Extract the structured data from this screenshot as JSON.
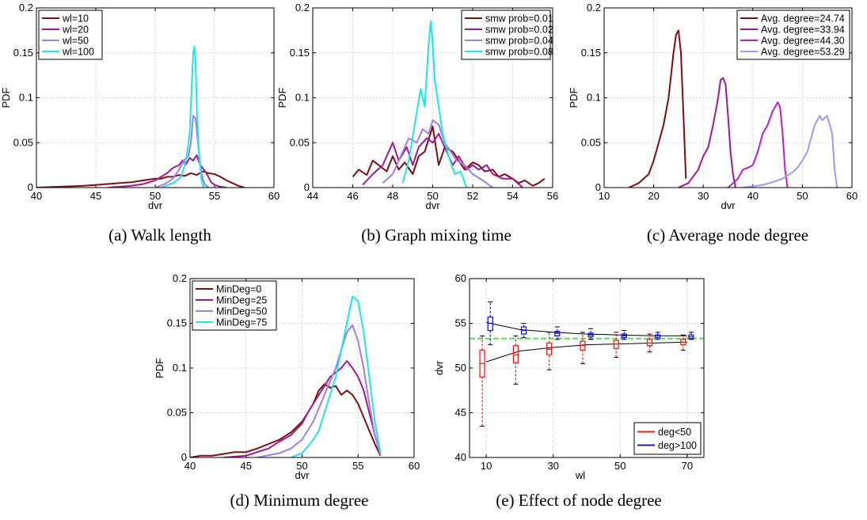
{
  "captions": {
    "a": "(a)  Walk length",
    "b": "(b)  Graph mixing time",
    "c": "(c)  Average node degree",
    "d": "(d)  Minimum degree",
    "e": "(e)  Effect of node degree"
  },
  "chart_data": [
    {
      "id": "a",
      "type": "line",
      "xlabel": "dvr",
      "ylabel": "PDF",
      "xlim": [
        40,
        60
      ],
      "ylim": [
        0,
        0.2
      ],
      "xticks": [
        40,
        45,
        50,
        55,
        60
      ],
      "yticks": [
        0,
        0.05,
        0.1,
        0.15,
        0.2
      ],
      "xtick_labels": [
        "40",
        "45",
        "50",
        "55",
        "60"
      ],
      "ytick_labels": [
        "0",
        "0.05",
        "0.1",
        "0.15",
        "0.2"
      ],
      "grid": true,
      "legend_position": "top-left",
      "series": [
        {
          "name": "wl=10",
          "color": "#7b0f12",
          "x": [
            40,
            42,
            44,
            45,
            46,
            47,
            48,
            49,
            50,
            50.5,
            51,
            51.5,
            52,
            52.5,
            53,
            53.5,
            54,
            54.5,
            55,
            55.5,
            56,
            56.5,
            57,
            57.5
          ],
          "y": [
            0,
            0.001,
            0.002,
            0.003,
            0.004,
            0.005,
            0.006,
            0.008,
            0.01,
            0.01,
            0.012,
            0.012,
            0.014,
            0.013,
            0.016,
            0.014,
            0.018,
            0.016,
            0.015,
            0.012,
            0.008,
            0.005,
            0.002,
            0
          ]
        },
        {
          "name": "wl=20",
          "color": "#a3188f",
          "x": [
            46,
            48,
            49,
            50,
            50.5,
            51,
            51.5,
            52,
            52.3,
            52.6,
            52.9,
            53.2,
            53.5,
            53.8,
            54.1,
            54.4,
            54.7,
            55,
            55.5,
            56
          ],
          "y": [
            0,
            0.002,
            0.004,
            0.008,
            0.012,
            0.016,
            0.022,
            0.025,
            0.03,
            0.026,
            0.033,
            0.03,
            0.036,
            0.025,
            0.02,
            0.014,
            0.006,
            0.003,
            0.001,
            0
          ]
        },
        {
          "name": "wl=50",
          "color": "#a07ee3",
          "x": [
            50,
            50.8,
            51.5,
            52,
            52.4,
            52.8,
            53,
            53.2,
            53.4,
            53.6,
            53.8,
            54,
            54.2,
            54.5
          ],
          "y": [
            0,
            0.004,
            0.01,
            0.02,
            0.03,
            0.035,
            0.05,
            0.08,
            0.077,
            0.05,
            0.025,
            0.01,
            0.003,
            0
          ]
        },
        {
          "name": "wl=100",
          "color": "#1ee6e6",
          "x": [
            50.5,
            51.5,
            52.2,
            52.6,
            52.9,
            53.1,
            53.2,
            53.3,
            53.4,
            53.5,
            53.7,
            53.9,
            54.1
          ],
          "y": [
            0,
            0.005,
            0.012,
            0.03,
            0.06,
            0.12,
            0.15,
            0.157,
            0.14,
            0.09,
            0.035,
            0.008,
            0
          ]
        }
      ]
    },
    {
      "id": "b",
      "type": "line",
      "xlabel": "dvr",
      "ylabel": "PDF",
      "xlim": [
        44,
        56
      ],
      "ylim": [
        0,
        0.2
      ],
      "xticks": [
        44,
        46,
        48,
        50,
        52,
        54,
        56
      ],
      "yticks": [
        0,
        0.05,
        0.1,
        0.15,
        0.2
      ],
      "xtick_labels": [
        "44",
        "46",
        "48",
        "50",
        "52",
        "54",
        "56"
      ],
      "ytick_labels": [
        "0",
        "0.05",
        "0.1",
        "0.15",
        "0.2"
      ],
      "grid": true,
      "legend_position": "top-right",
      "series": [
        {
          "name": "smw prob=0.01",
          "color": "#7b0f12",
          "x": [
            46,
            46.3,
            46.7,
            47,
            47.3,
            47.7,
            48,
            48.3,
            48.6,
            49,
            49.3,
            49.6,
            50,
            50.3,
            50.6,
            51,
            51.3,
            51.6,
            52,
            52.3,
            52.6,
            53,
            53.3,
            53.6,
            54,
            54.3,
            54.6,
            55,
            55.3,
            55.6
          ],
          "y": [
            0.012,
            0.02,
            0.014,
            0.03,
            0.025,
            0.018,
            0.035,
            0.02,
            0.028,
            0.015,
            0.035,
            0.04,
            0.068,
            0.025,
            0.045,
            0.04,
            0.03,
            0.02,
            0.028,
            0.025,
            0.018,
            0.02,
            0.012,
            0.015,
            0.01,
            0.005,
            0.008,
            0.002,
            0.005,
            0.01
          ]
        },
        {
          "name": "smw prob=0.02",
          "color": "#a3188f",
          "x": [
            46.5,
            47,
            47.5,
            48,
            48.3,
            48.7,
            49,
            49.3,
            49.7,
            50,
            50.3,
            50.7,
            51,
            51.3,
            51.7,
            52,
            52.3,
            52.7,
            53,
            53.5,
            54,
            54.5
          ],
          "y": [
            0.003,
            0.015,
            0.025,
            0.05,
            0.03,
            0.045,
            0.025,
            0.045,
            0.055,
            0.05,
            0.06,
            0.04,
            0.025,
            0.035,
            0.02,
            0.025,
            0.02,
            0.025,
            0.015,
            0.01,
            0.01,
            0
          ]
        },
        {
          "name": "smw prob=0.04",
          "color": "#a07ee3",
          "x": [
            47.5,
            48,
            48.4,
            48.8,
            49.2,
            49.5,
            49.8,
            50,
            50.3,
            50.6,
            50.9,
            51.2,
            51.6,
            52,
            52.5,
            53
          ],
          "y": [
            0.005,
            0.015,
            0.035,
            0.055,
            0.05,
            0.065,
            0.06,
            0.075,
            0.07,
            0.05,
            0.04,
            0.03,
            0.025,
            0.015,
            0.008,
            0
          ]
        },
        {
          "name": "smw prob=0.08",
          "color": "#1ee6e6",
          "x": [
            48.5,
            48.8,
            49.1,
            49.4,
            49.6,
            49.8,
            49.9,
            50,
            50.1,
            50.3,
            50.5,
            50.8,
            51.1,
            51.4,
            51.7
          ],
          "y": [
            0.005,
            0.03,
            0.07,
            0.11,
            0.09,
            0.16,
            0.185,
            0.16,
            0.12,
            0.09,
            0.06,
            0.035,
            0.015,
            0.018,
            0
          ]
        }
      ]
    },
    {
      "id": "c",
      "type": "line",
      "xlabel": "dvr",
      "ylabel": "PDF",
      "xlim": [
        10,
        60
      ],
      "ylim": [
        0,
        0.2
      ],
      "xticks": [
        10,
        20,
        30,
        40,
        50,
        60
      ],
      "yticks": [
        0,
        0.05,
        0.1,
        0.15,
        0.2
      ],
      "xtick_labels": [
        "10",
        "20",
        "30",
        "40",
        "50",
        "60"
      ],
      "ytick_labels": [
        "0",
        "0.05",
        "0.1",
        "0.15",
        "0.2"
      ],
      "grid": true,
      "legend_position": "top-right",
      "series": [
        {
          "name": "Avg. degree=24.74",
          "color": "#7b0f12",
          "x": [
            15,
            17,
            19,
            20,
            21,
            22,
            23,
            24,
            24.5,
            25,
            25.5,
            26,
            26.5
          ],
          "y": [
            0,
            0.005,
            0.015,
            0.03,
            0.05,
            0.07,
            0.1,
            0.15,
            0.17,
            0.175,
            0.15,
            0.08,
            0.01
          ]
        },
        {
          "name": "Avg. degree=33.94",
          "color": "#a3188f",
          "x": [
            25,
            27,
            29,
            30,
            31,
            32,
            33,
            33.5,
            34,
            34.5,
            35,
            35.5,
            36,
            36.5
          ],
          "y": [
            0,
            0.005,
            0.02,
            0.035,
            0.045,
            0.07,
            0.1,
            0.12,
            0.122,
            0.115,
            0.08,
            0.04,
            0.015,
            0
          ]
        },
        {
          "name": "Avg. degree=44.30",
          "color": "#c21bd0",
          "x": [
            35,
            37,
            38,
            39,
            40,
            41,
            42,
            43,
            44,
            44.5,
            45,
            45.5,
            46,
            46.5,
            47
          ],
          "y": [
            0,
            0.01,
            0.02,
            0.022,
            0.025,
            0.04,
            0.06,
            0.07,
            0.085,
            0.09,
            0.095,
            0.09,
            0.06,
            0.02,
            0
          ]
        },
        {
          "name": "Avg. degree=53.29",
          "color": "#9b9bf3",
          "x": [
            38,
            42,
            44,
            46,
            48,
            49,
            50,
            51,
            52,
            52.5,
            53,
            53.5,
            54,
            55,
            56,
            56.5,
            57
          ],
          "y": [
            0,
            0.003,
            0.006,
            0.01,
            0.017,
            0.022,
            0.03,
            0.04,
            0.06,
            0.07,
            0.075,
            0.08,
            0.075,
            0.08,
            0.06,
            0.02,
            0
          ]
        }
      ]
    },
    {
      "id": "d",
      "type": "line",
      "xlabel": "dvr",
      "ylabel": "PDF",
      "xlim": [
        40,
        60
      ],
      "ylim": [
        0,
        0.2
      ],
      "xticks": [
        40,
        45,
        50,
        55,
        60
      ],
      "yticks": [
        0,
        0.05,
        0.1,
        0.15,
        0.2
      ],
      "xtick_labels": [
        "40",
        "45",
        "50",
        "55",
        "60"
      ],
      "ytick_labels": [
        "0",
        "0.05",
        "0.1",
        "0.15",
        "0.2"
      ],
      "grid": true,
      "legend_position": "top-left",
      "series": [
        {
          "name": "MinDeg=0",
          "color": "#7b0f12",
          "x": [
            40,
            41,
            42,
            43,
            44,
            45,
            46,
            47,
            48,
            49,
            50,
            50.5,
            51,
            51.5,
            52,
            52.5,
            53,
            53.5,
            54,
            54.5,
            55,
            55.5,
            56,
            56.5,
            57
          ],
          "y": [
            0,
            0.002,
            0.002,
            0.004,
            0.006,
            0.006,
            0.01,
            0.015,
            0.02,
            0.028,
            0.04,
            0.05,
            0.06,
            0.075,
            0.082,
            0.078,
            0.08,
            0.07,
            0.075,
            0.07,
            0.06,
            0.045,
            0.03,
            0.015,
            0.002
          ]
        },
        {
          "name": "MinDeg=25",
          "color": "#a3188f",
          "x": [
            43,
            45,
            47,
            48,
            49,
            50,
            50.5,
            51,
            51.5,
            52,
            52.5,
            53,
            53.5,
            54,
            54.5,
            55,
            55.5,
            56,
            56.5,
            57
          ],
          "y": [
            0,
            0.002,
            0.01,
            0.018,
            0.025,
            0.038,
            0.05,
            0.06,
            0.07,
            0.08,
            0.09,
            0.095,
            0.1,
            0.108,
            0.1,
            0.09,
            0.075,
            0.05,
            0.025,
            0.003
          ]
        },
        {
          "name": "MinDeg=50",
          "color": "#a07ee3",
          "x": [
            46,
            48,
            49,
            50,
            50.5,
            51,
            51.5,
            52,
            52.5,
            53,
            53.5,
            54,
            54.5,
            55,
            55.5,
            56,
            56.5,
            57
          ],
          "y": [
            0,
            0.005,
            0.01,
            0.02,
            0.03,
            0.04,
            0.055,
            0.07,
            0.085,
            0.1,
            0.12,
            0.14,
            0.148,
            0.13,
            0.1,
            0.06,
            0.025,
            0.003
          ]
        },
        {
          "name": "MinDeg=75",
          "color": "#1ee6e6",
          "x": [
            49,
            50,
            50.5,
            51,
            51.5,
            52,
            52.5,
            53,
            53.5,
            54,
            54.5,
            55,
            55.5,
            56,
            56.5,
            57
          ],
          "y": [
            0,
            0.005,
            0.012,
            0.02,
            0.03,
            0.05,
            0.07,
            0.09,
            0.12,
            0.15,
            0.18,
            0.175,
            0.14,
            0.09,
            0.04,
            0.005
          ]
        }
      ]
    },
    {
      "id": "e",
      "type": "box",
      "xlabel": "wl",
      "ylabel": "dvr",
      "xlim": [
        5,
        75
      ],
      "ylim": [
        40,
        60
      ],
      "xticks": [
        10,
        30,
        50,
        70
      ],
      "yticks": [
        40,
        45,
        50,
        55,
        60
      ],
      "xtick_labels": [
        "10",
        "30",
        "50",
        "70"
      ],
      "ytick_labels": [
        "40",
        "45",
        "50",
        "55",
        "60"
      ],
      "grid": true,
      "legend_position": "bottom-right",
      "reference_line": {
        "y": 53.3,
        "color": "#33ee33"
      },
      "series": [
        {
          "name": "deg<50",
          "color": "#e8231f",
          "offset": -1.2,
          "wl": [
            10,
            20,
            30,
            40,
            50,
            60,
            70
          ],
          "whisker_low": [
            43.5,
            48.2,
            49.8,
            50.5,
            51.2,
            51.8,
            52
          ],
          "q1": [
            49,
            50.6,
            51.5,
            52,
            52.2,
            52.5,
            52.6
          ],
          "median": [
            50.5,
            51.5,
            52.1,
            52.5,
            52.7,
            52.8,
            52.9
          ],
          "q3": [
            52,
            52.5,
            52.8,
            53,
            53.1,
            53.2,
            53.2
          ],
          "whisker_high": [
            53.6,
            53.6,
            54,
            54,
            54,
            53.8,
            53.7
          ],
          "trend": [
            50.7,
            51.9,
            52.3,
            52.6,
            52.7,
            52.8,
            52.9
          ]
        },
        {
          "name": "deg>100",
          "color": "#1c1ccf",
          "offset": 1.2,
          "wl": [
            10,
            20,
            30,
            40,
            50,
            60,
            70
          ],
          "whisker_low": [
            52.6,
            53.4,
            53.2,
            53.2,
            53.2,
            53.2,
            53.2
          ],
          "q1": [
            54.2,
            53.8,
            53.6,
            53.5,
            53.4,
            53.4,
            53.3
          ],
          "median": [
            55,
            54.2,
            53.9,
            53.7,
            53.6,
            53.6,
            53.5
          ],
          "q3": [
            55.7,
            54.6,
            54.1,
            53.9,
            53.8,
            53.7,
            53.7
          ],
          "whisker_high": [
            57.4,
            55,
            54.6,
            54.4,
            54.2,
            54,
            54
          ],
          "trend": [
            55.1,
            54.3,
            54,
            53.8,
            53.7,
            53.6,
            53.6
          ]
        }
      ]
    }
  ]
}
